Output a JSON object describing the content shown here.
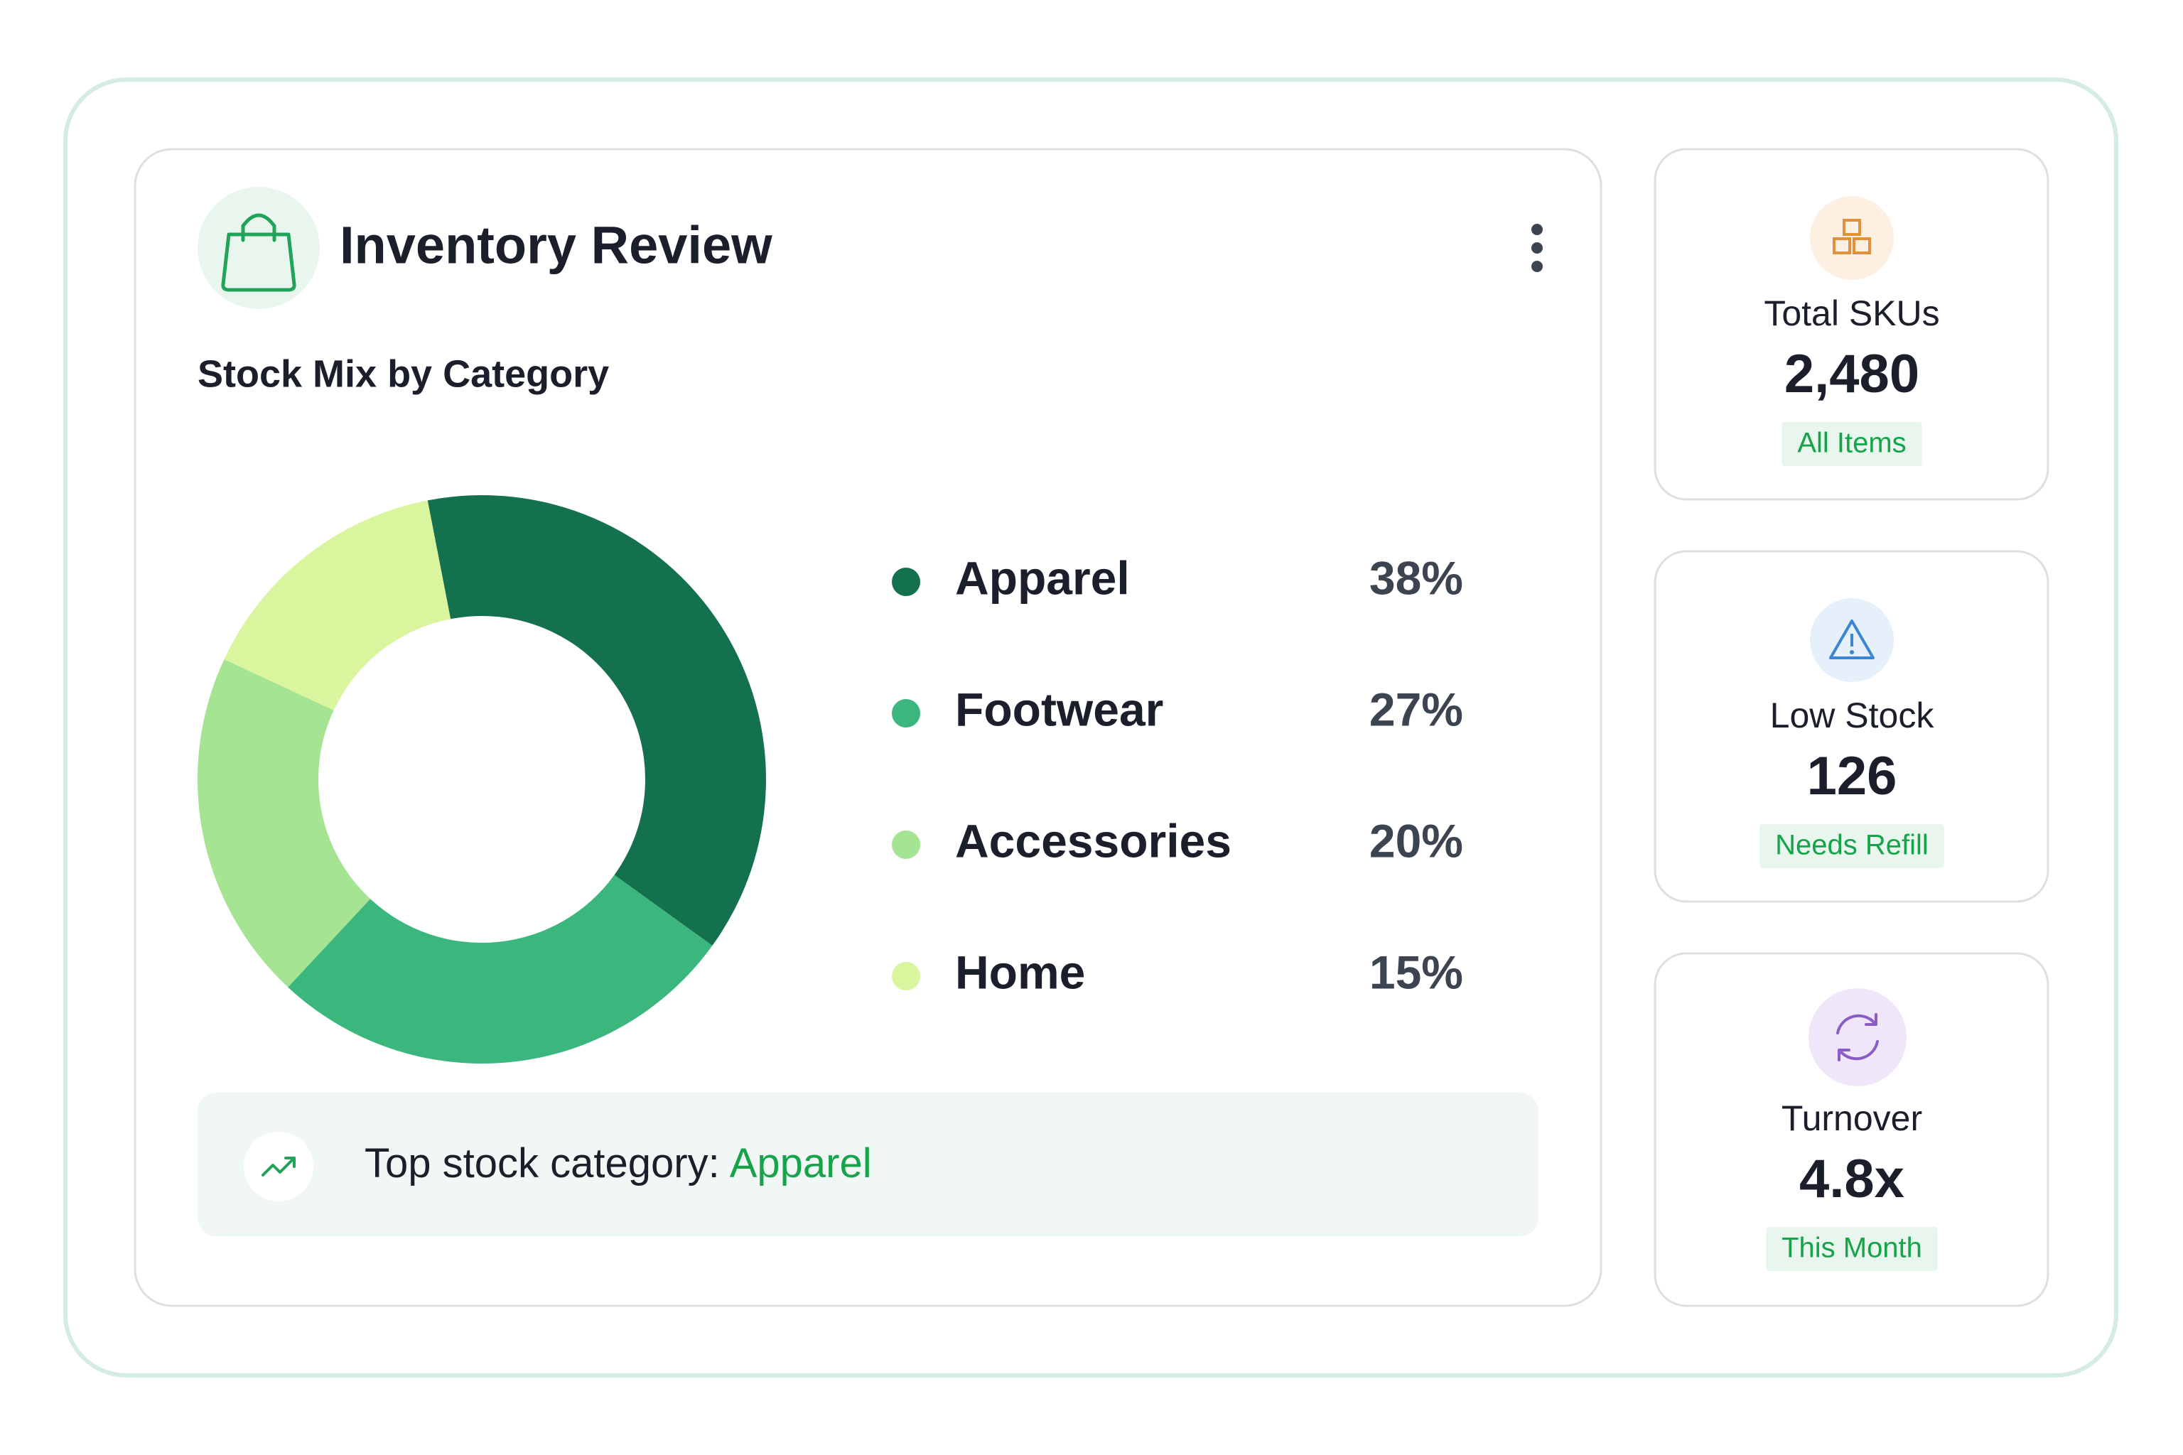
{
  "header": {
    "title": "Inventory Review"
  },
  "chart_data": {
    "type": "donut",
    "title": "Stock Mix by Category",
    "categories": [
      "Apparel",
      "Footwear",
      "Accessories",
      "Home"
    ],
    "values": [
      38,
      27,
      20,
      15
    ],
    "value_labels": [
      "38%",
      "27%",
      "20%",
      "15%"
    ],
    "colors": [
      "#14714d",
      "#3bb77e",
      "#a5e492",
      "#d9f59e"
    ]
  },
  "insight": {
    "label": "Top stock category:",
    "value": "Apparel"
  },
  "stats": [
    {
      "label": "Total SKUs",
      "value": "2,480",
      "tag": "All Items",
      "color": "#b8862b"
    },
    {
      "label": "Low Stock",
      "value": "126",
      "tag": "Needs Refill",
      "color": "#2f7fd0"
    },
    {
      "label": "Turnover",
      "value": "4.8x",
      "tag": "This Month",
      "color": "#8b5cc7"
    }
  ]
}
